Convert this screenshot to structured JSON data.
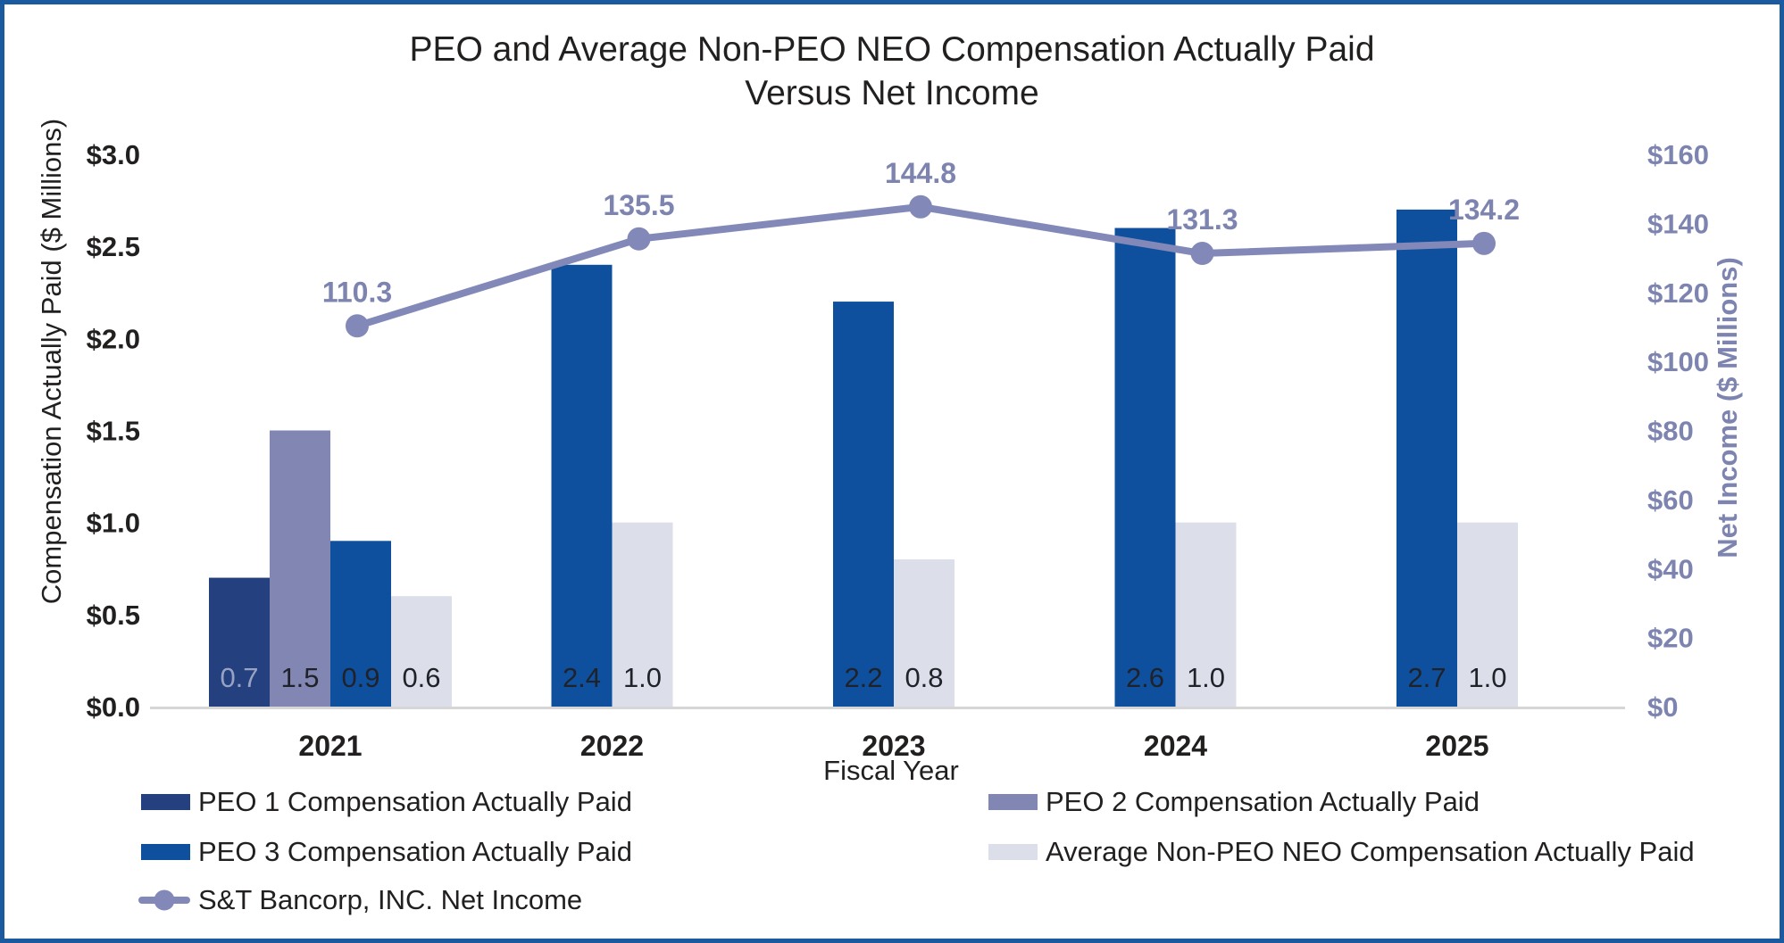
{
  "figure": {
    "title_line1": "PEO and Average Non-PEO NEO Compensation Actually Paid",
    "title_line2": "Versus Net Income"
  },
  "chart_data": {
    "type": "bar",
    "subtype": "grouped-bars-with-line",
    "title": "PEO and Average Non-PEO NEO Compensation Actually Paid Versus Net Income",
    "categories": [
      "2021",
      "2022",
      "2023",
      "2024",
      "2025"
    ],
    "bar_series": [
      {
        "key": "peo1",
        "name": "PEO 1 Compensation Actually Paid",
        "label_style": "light",
        "values": [
          0.7,
          null,
          null,
          null,
          null
        ]
      },
      {
        "key": "peo2",
        "name": "PEO 2 Compensation Actually Paid",
        "label_style": "dark",
        "values": [
          1.5,
          null,
          null,
          null,
          null
        ]
      },
      {
        "key": "peo3",
        "name": "PEO 3 Compensation Actually Paid",
        "label_style": "dark",
        "values": [
          0.9,
          2.4,
          2.2,
          2.6,
          2.7
        ]
      },
      {
        "key": "avg",
        "name": "Average Non-PEO NEO Compensation Actually Paid",
        "label_style": "dark",
        "values": [
          0.6,
          1.0,
          0.8,
          1.0,
          1.0
        ]
      }
    ],
    "line_series": {
      "key": "line",
      "name": "S&T Bancorp, INC. Net Income",
      "values": [
        110.3,
        135.5,
        144.8,
        131.3,
        134.2
      ]
    },
    "left_axis": {
      "title": "Compensation Actually Paid ($ Millions)",
      "ticks": [
        "$3.0",
        "$2.5",
        "$2.0",
        "$1.5",
        "$1.0",
        "$0.5",
        "$0.0"
      ],
      "min": 0,
      "max": 3.0
    },
    "right_axis": {
      "title": "Net Income ($ Millions)",
      "ticks": [
        "$160",
        "$140",
        "$120",
        "$100",
        "$80",
        "$60",
        "$40",
        "$20",
        "$0"
      ],
      "min": 0,
      "max": 160
    },
    "x_axis": {
      "title": "Fiscal Year"
    },
    "grid": "none",
    "legend_position": "bottom",
    "data_labels": "inside-bar-base-and-above-line-markers"
  },
  "legend": {
    "items": [
      {
        "label": "PEO 1 Compensation Actually Paid",
        "swatch": "peo1"
      },
      {
        "label": "PEO 2 Compensation Actually Paid",
        "swatch": "peo2"
      },
      {
        "label": "PEO 3 Compensation Actually Paid",
        "swatch": "peo3"
      },
      {
        "label": "Average Non-PEO NEO Compensation Actually Paid",
        "swatch": "avg"
      },
      {
        "label": "S&T Bancorp, INC. Net Income",
        "swatch": "line"
      }
    ]
  },
  "colors": {
    "peo1": "#24407E",
    "peo2": "#8186B2",
    "peo3": "#0E509E",
    "avg": "#DCDEE9",
    "line": "#8289B8",
    "line_label": "#7D84B0",
    "right_axis_text": "#7D84B0",
    "text": "#221F1F",
    "bar_label_dark": "#1F2228",
    "bar_label_light": "#98A2C4",
    "baseline": "#D6D6D6",
    "border": "#1B5A9E"
  }
}
